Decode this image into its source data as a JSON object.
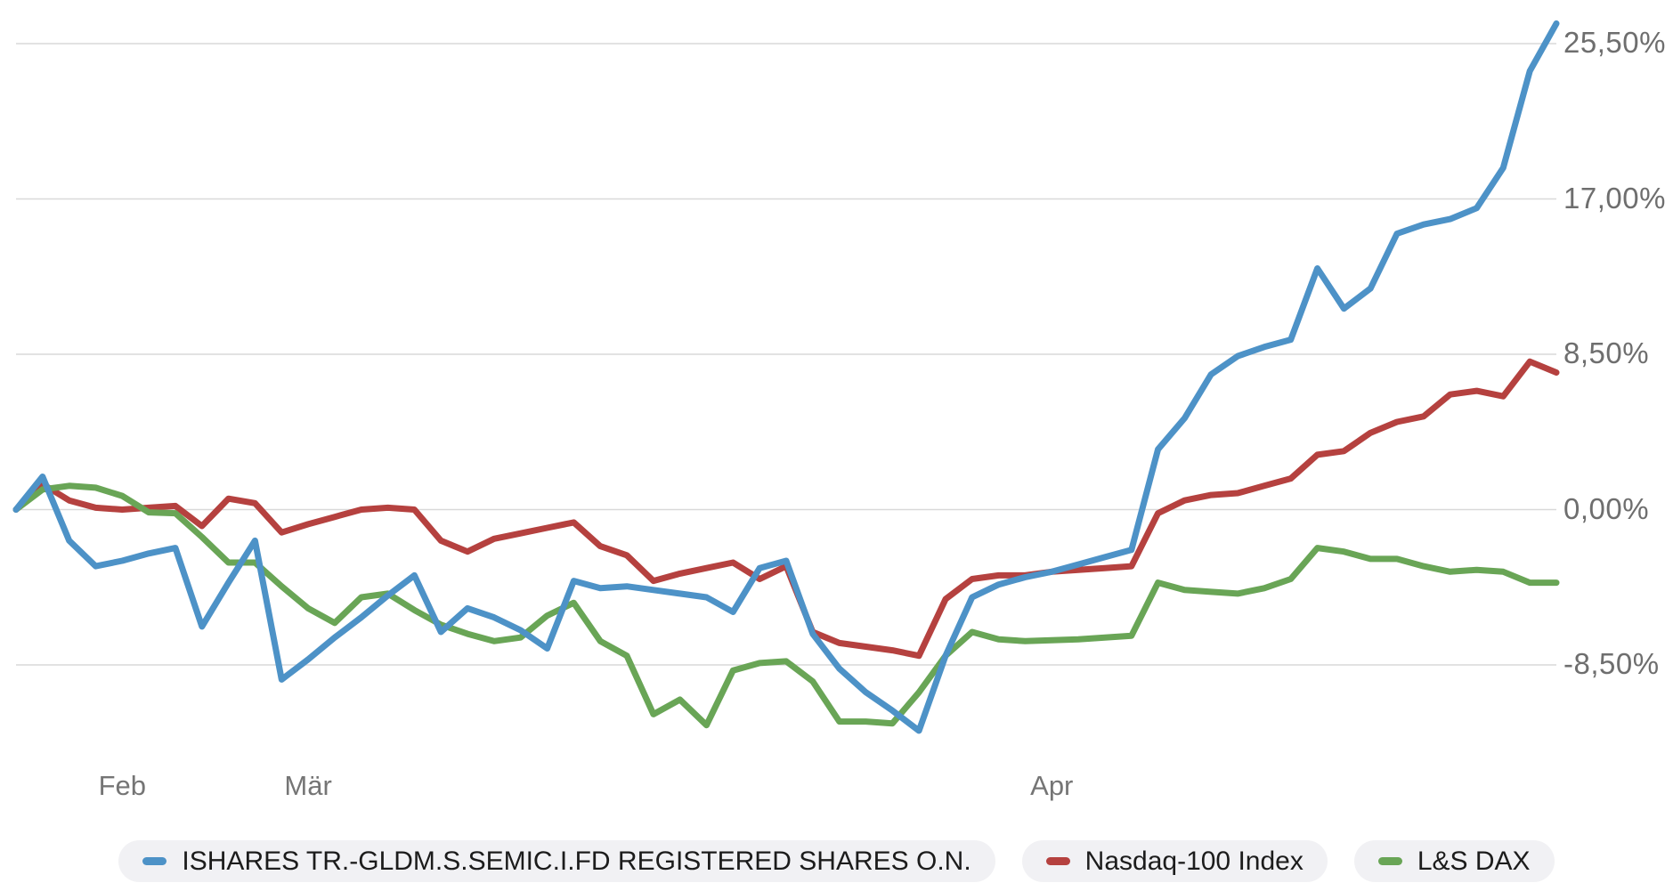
{
  "chart_data": {
    "type": "line",
    "title": "",
    "unit": "%",
    "grid": true,
    "legend_position": "bottom",
    "y_axis": {
      "ticks": [
        {
          "label": "25,50%",
          "value": 25.5
        },
        {
          "label": "17,00%",
          "value": 17.0
        },
        {
          "label": "8,50%",
          "value": 8.5
        },
        {
          "label": "0,00%",
          "value": 0.0
        },
        {
          "label": "-8,50%",
          "value": -8.5
        }
      ],
      "ymin": -12.5,
      "ymax": 27.0
    },
    "x_axis": {
      "labels": [
        {
          "text": "Feb",
          "index": 4
        },
        {
          "text": "Mär",
          "index": 11
        },
        {
          "text": "Apr",
          "index": 39
        }
      ],
      "point_count": 59
    },
    "series": [
      {
        "name": "ISHARES TR.-GLDM.S.SEMIC.I.FD REGISTERED SHARES O.N.",
        "color": "#4d92c7",
        "values": [
          0.0,
          1.8,
          -1.7,
          -3.1,
          -2.8,
          -2.4,
          -2.1,
          -6.4,
          -4.0,
          -1.7,
          -9.3,
          -8.2,
          -7.0,
          -5.9,
          -4.7,
          -3.6,
          -6.7,
          -5.4,
          -5.9,
          -6.6,
          -7.6,
          -3.9,
          -4.3,
          -4.2,
          -4.4,
          -4.6,
          -4.8,
          -5.6,
          -3.2,
          -2.8,
          -6.8,
          -8.7,
          -10.0,
          -11.0,
          -12.1,
          -8.0,
          -4.8,
          -4.1,
          -3.7,
          -3.4,
          -3.0,
          -2.6,
          -2.2,
          3.3,
          5.0,
          7.4,
          8.4,
          8.9,
          9.3,
          13.2,
          11.0,
          12.1,
          15.1,
          15.6,
          15.9,
          16.5,
          18.7,
          24.0,
          26.6
        ]
      },
      {
        "name": "Nasdaq-100 Index",
        "color": "#b5413f",
        "values": [
          0.0,
          1.4,
          0.5,
          0.1,
          0.0,
          0.1,
          0.2,
          -0.9,
          0.6,
          0.35,
          -1.25,
          -0.8,
          -0.4,
          0.0,
          0.1,
          0.0,
          -1.7,
          -2.3,
          -1.6,
          -1.3,
          -1.0,
          -0.7,
          -2.0,
          -2.5,
          -3.9,
          -3.5,
          -3.2,
          -2.9,
          -3.8,
          -3.1,
          -6.7,
          -7.3,
          -7.5,
          -7.7,
          -8.0,
          -4.9,
          -3.8,
          -3.6,
          -3.6,
          -3.4,
          -3.3,
          -3.2,
          -3.1,
          -0.2,
          0.5,
          0.8,
          0.9,
          1.3,
          1.7,
          3.0,
          3.2,
          4.2,
          4.8,
          5.1,
          6.3,
          6.5,
          6.2,
          8.1,
          7.5
        ]
      },
      {
        "name": "L&S DAX",
        "color": "#69a556",
        "values": [
          0.0,
          1.1,
          1.3,
          1.2,
          0.75,
          -0.15,
          -0.2,
          -1.5,
          -2.9,
          -2.9,
          -4.2,
          -5.4,
          -6.2,
          -4.8,
          -4.6,
          -5.5,
          -6.3,
          -6.8,
          -7.2,
          -7.0,
          -5.8,
          -5.1,
          -7.2,
          -8.0,
          -11.2,
          -10.4,
          -11.8,
          -8.8,
          -8.4,
          -8.3,
          -9.4,
          -11.6,
          -11.6,
          -11.7,
          -10.0,
          -8.0,
          -6.7,
          -7.1,
          -7.2,
          -7.15,
          -7.1,
          -7.0,
          -6.9,
          -4.0,
          -4.4,
          -4.5,
          -4.6,
          -4.3,
          -3.8,
          -2.1,
          -2.3,
          -2.7,
          -2.7,
          -3.1,
          -3.4,
          -3.3,
          -3.4,
          -4.0,
          -4.0
        ]
      }
    ],
    "gridline_color": "#d9d9d9"
  }
}
